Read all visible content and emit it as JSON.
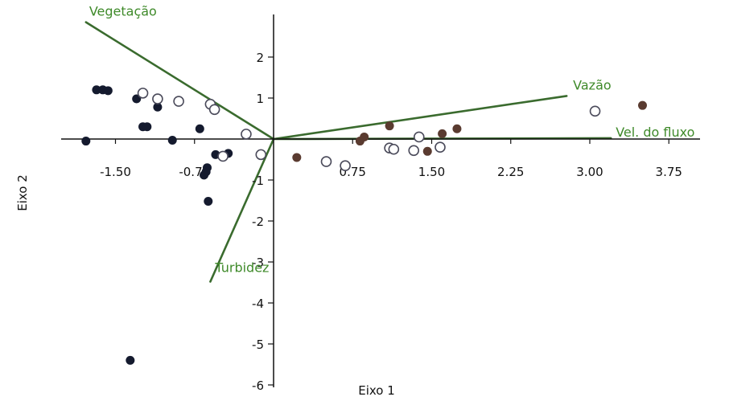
{
  "chart_data": {
    "type": "scatter",
    "title": "",
    "xlabel": "Eixo 1",
    "ylabel": "Eixo 2",
    "xlim": [
      -2.0,
      4.8
    ],
    "ylim": [
      -6.2,
      3.0
    ],
    "x_ticks": [
      -1.5,
      -0.75,
      0.75,
      1.5,
      2.25,
      3.0,
      3.75
    ],
    "x_tick_labels": [
      "-1.50",
      "-0.75",
      "0.75",
      "1.50",
      "2.25",
      "3.00",
      "3.75"
    ],
    "y_ticks": [
      2,
      1,
      -1,
      -2,
      -3,
      -4,
      -5,
      -6
    ],
    "y_tick_labels": [
      "2",
      "1",
      "-1",
      "-2",
      "-3",
      "-4",
      "-5",
      "-6"
    ],
    "grid": false,
    "colors": {
      "vector": "#3a6b2e",
      "vector_label": "#3f8a2a",
      "dark_point": "#141a2e",
      "brown_point": "#5a3b30",
      "open_point": "#4a4a5a",
      "axis": "#111111"
    },
    "vectors": [
      {
        "label": "Vegetação",
        "x": -1.78,
        "y": 2.85
      },
      {
        "label": "Vazão",
        "x": 2.78,
        "y": 1.05
      },
      {
        "label": "Vel. do fluxo",
        "x": 3.2,
        "y": 0.02
      },
      {
        "label": "Turbidez",
        "x": -0.6,
        "y": -3.48
      }
    ],
    "series": [
      {
        "marker": "filled",
        "points": [
          {
            "x": -1.78,
            "y": -0.05
          },
          {
            "x": -1.68,
            "y": 1.2
          },
          {
            "x": -1.62,
            "y": 1.2
          },
          {
            "x": -1.57,
            "y": 1.18
          },
          {
            "x": -1.36,
            "y": -5.4
          },
          {
            "x": -1.3,
            "y": 0.98
          },
          {
            "x": -1.24,
            "y": 0.3
          },
          {
            "x": -1.2,
            "y": 0.3
          },
          {
            "x": -1.1,
            "y": 0.78
          },
          {
            "x": -0.96,
            "y": -0.03
          },
          {
            "x": -0.7,
            "y": 0.25
          },
          {
            "x": -0.66,
            "y": -0.88
          },
          {
            "x": -0.64,
            "y": -0.8
          },
          {
            "x": -0.63,
            "y": -0.7
          },
          {
            "x": -0.62,
            "y": -1.52
          },
          {
            "x": -0.55,
            "y": -0.38
          },
          {
            "x": -0.43,
            "y": -0.35
          }
        ]
      },
      {
        "marker": "filled-brown",
        "points": [
          {
            "x": 0.22,
            "y": -0.45
          },
          {
            "x": 0.82,
            "y": -0.05
          },
          {
            "x": 0.86,
            "y": 0.05
          },
          {
            "x": 1.1,
            "y": 0.32
          },
          {
            "x": 1.46,
            "y": -0.3
          },
          {
            "x": 1.6,
            "y": 0.13
          },
          {
            "x": 1.74,
            "y": 0.25
          },
          {
            "x": 3.5,
            "y": 0.82
          }
        ]
      },
      {
        "marker": "open",
        "points": [
          {
            "x": -1.24,
            "y": 1.12
          },
          {
            "x": -1.1,
            "y": 0.98
          },
          {
            "x": -0.9,
            "y": 0.92
          },
          {
            "x": -0.6,
            "y": 0.85
          },
          {
            "x": -0.56,
            "y": 0.72
          },
          {
            "x": -0.48,
            "y": -0.42
          },
          {
            "x": -0.26,
            "y": 0.12
          },
          {
            "x": -0.12,
            "y": -0.38
          },
          {
            "x": 0.5,
            "y": -0.55
          },
          {
            "x": 0.68,
            "y": -0.65
          },
          {
            "x": 1.1,
            "y": -0.22
          },
          {
            "x": 1.14,
            "y": -0.25
          },
          {
            "x": 1.33,
            "y": -0.28
          },
          {
            "x": 1.38,
            "y": 0.05
          },
          {
            "x": 1.58,
            "y": -0.2
          },
          {
            "x": 3.05,
            "y": 0.68
          }
        ]
      }
    ]
  }
}
